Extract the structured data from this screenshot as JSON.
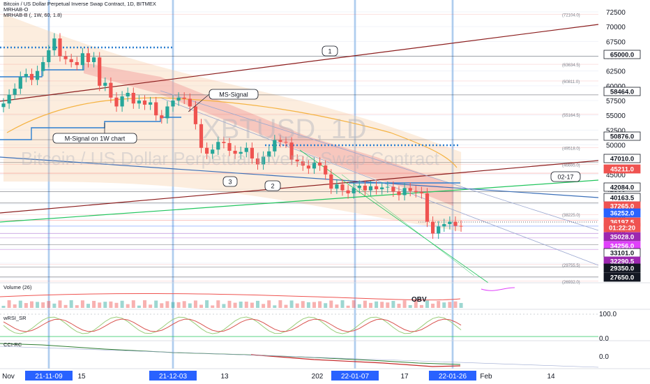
{
  "header": {
    "symbol_line": "Bitcoin / US Dollar Perpetual Inverse Swap Contract, 1D, BITMEX",
    "indicator_1": "MRHAB-O",
    "indicator_2": "MRHAB-B (, 1W, 60, 1.8)"
  },
  "watermark": {
    "ticker": "XBTUSD, 1D",
    "description": "Bitcoin / US Dollar Perpetual Inverse Swap Contract"
  },
  "colors": {
    "up": "#26a69a",
    "down": "#ef5350",
    "grid": "#f0f3fa",
    "trend_dark": "#8b1d1d",
    "trend_green": "#22c55e",
    "trend_blue": "#3b6fb8",
    "cloud": "#f7cba0",
    "cloud_red": "#f29a96",
    "signal": "#f5b342",
    "msignal": "#2d7fd0",
    "hline": "#2a2e39",
    "hline_purple": "#a347c7"
  },
  "chart_data": [
    {
      "type": "line",
      "title": "Bitcoin / US Dollar Perpetual Inverse Swap Contract, 1D, BITMEX",
      "x_labels": [
        "Nov",
        "21-11-09",
        "15",
        "21-12-03",
        "13",
        "202",
        "22-01-07",
        "17",
        "22-01-26",
        "Feb",
        "14"
      ],
      "highlighted_dates": [
        "21-11-09",
        "21-12-03",
        "22-01-07",
        "22-01-26"
      ],
      "y_ticks": [
        72500.0,
        70000.0,
        67500.0,
        65000.0,
        62500.0,
        60000.0,
        57500.0,
        55000.0,
        52500.0,
        50000.0,
        47500.0,
        45000.0,
        42500.0,
        40000.0,
        37500.0,
        35000.0,
        32500.0,
        30000.0,
        27500.0
      ],
      "price_labels": [
        {
          "value": "65000.0",
          "style": "boxed"
        },
        {
          "value": "58464.0",
          "style": "boxed"
        },
        {
          "value": "50876.0",
          "style": "boxed"
        },
        {
          "value": "47010.0",
          "style": "boxed"
        },
        {
          "value": "45211.0",
          "style": "red"
        },
        {
          "value": "42084.0",
          "style": "boxed"
        },
        {
          "value": "40163.5",
          "style": "boxed"
        },
        {
          "value": "37265.0",
          "style": "red"
        },
        {
          "value": "36252.0",
          "style": "blue"
        },
        {
          "value": "36197.5",
          "style": "red"
        },
        {
          "value": "01:22:20",
          "style": "red"
        },
        {
          "value": "35028.0",
          "style": "purple"
        },
        {
          "value": "34256.0",
          "style": "magenta"
        },
        {
          "value": "33101.0",
          "style": "boxed"
        },
        {
          "value": "32290.5",
          "style": "purple"
        },
        {
          "value": "29350.0",
          "style": "dark"
        },
        {
          "value": "27650.0",
          "style": "dark"
        }
      ],
      "level_notes": [
        "(72104.0)",
        "(63634.5)",
        "(60811.0)",
        "(55164.5)",
        "(49518.0)",
        "(46695.0)",
        "(38225.0)",
        "(29755.5)",
        "(26932.0)"
      ],
      "annotations": [
        "1",
        "2",
        "3",
        "MS-Signal",
        "M-Signal on 1W chart",
        "02-17"
      ],
      "close": [
        57000,
        58500,
        59500,
        61500,
        62000,
        61000,
        62500,
        64000,
        66000,
        68000,
        65000,
        64500,
        64000,
        63500,
        65500,
        64000,
        64800,
        60000,
        60500,
        58000,
        56500,
        58200,
        58800,
        57000,
        57500,
        56800,
        57200,
        55000,
        54500,
        56500,
        57500,
        58000,
        57800,
        56500,
        53500,
        49500,
        48500,
        49200,
        50500,
        50300,
        49000,
        48500,
        48800,
        49500,
        47700,
        46700,
        48000,
        48900,
        50800,
        50500,
        50400,
        47500,
        47200,
        46500,
        46000,
        47000,
        46500,
        45000,
        42600,
        43300,
        42300,
        41800,
        42700,
        43100,
        42300,
        43000,
        42500,
        42800,
        42900,
        42100,
        41500,
        42700,
        42200,
        42000,
        41800,
        37000,
        35000,
        36200,
        36600,
        37000,
        36300,
        36200
      ],
      "series": [
        {
          "name": "Volume (26)"
        },
        {
          "name": "OBV"
        },
        {
          "name": "wRSI_SR",
          "y_ticks": [
            "100.0",
            "0.0"
          ]
        },
        {
          "name": "CCI-RC",
          "y_ticks": [
            "0.0"
          ]
        }
      ]
    }
  ]
}
